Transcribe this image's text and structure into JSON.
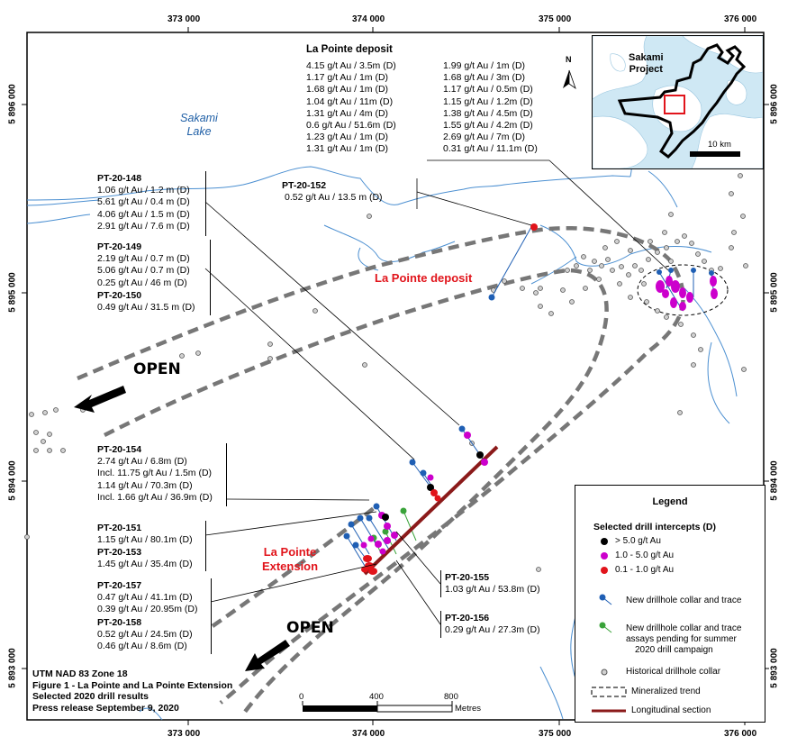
{
  "grid": {
    "x_ticks": [
      "373 000",
      "374 000",
      "375 000",
      "376 000"
    ],
    "y_ticks": [
      "5 896 000",
      "5 895 000",
      "5 894 000",
      "5 893 000"
    ]
  },
  "lake": {
    "line1": "Sakami",
    "line2": "Lake"
  },
  "deposit_box": {
    "title": "La Pointe deposit",
    "left": [
      "4.15 g/t Au / 3.5m (D)",
      "1.17 g/t Au / 1m (D)",
      "1.68 g/t Au / 1m (D)",
      "1.04 g/t Au / 11m (D)",
      "1.31 g/t Au / 4m (D)",
      "0.6 g/t Au / 51.6m (D)",
      "1.23 g/t Au / 1m (D)",
      "1.31 g/t Au / 1m (D)"
    ],
    "right": [
      "1.99 g/t Au / 1m (D)",
      "1.68 g/t Au / 3m (D)",
      "1.17 g/t Au / 0.5m (D)",
      "1.15 g/t Au / 1.2m (D)",
      "1.38 g/t Au / 4.5m (D)",
      "1.55 g/t Au / 4.2m (D)",
      "2.69 g/t Au / 7m (D)",
      "0.31 g/t Au / 11.1m (D)"
    ]
  },
  "callouts": {
    "pt148": {
      "name": "PT-20-148",
      "rows": [
        "1.06 g/t Au / 1.2 m (D)",
        "5.61 g/t Au / 0.4 m (D)",
        "4.06 g/t Au / 1.5 m (D)",
        "2.91 g/t Au / 7.6 m (D)"
      ]
    },
    "pt149": {
      "name": "PT-20-149",
      "rows": [
        "2.19 g/t Au / 0.7 m (D)",
        "5.06 g/t Au / 0.7 m (D)",
        "0.25 g/t Au / 46 m (D)"
      ]
    },
    "pt150": {
      "name": "PT-20-150",
      "rows": [
        "0.49 g/t Au / 31.5 m (D)"
      ]
    },
    "pt152": {
      "name": "PT-20-152",
      "rows": [
        "0.52 g/t Au / 13.5 m (D)"
      ]
    },
    "pt154": {
      "name": "PT-20-154",
      "rows": [
        "2.74 g/t Au / 6.8m (D)",
        "Incl. 11.75 g/t Au / 1.5m (D)",
        "1.14 g/t Au / 70.3m (D)",
        "Incl. 1.66 g/t Au / 36.9m (D)"
      ]
    },
    "pt151": {
      "name": "PT-20-151",
      "rows": [
        "1.15 g/t Au / 80.1m (D)"
      ]
    },
    "pt153": {
      "name": "PT-20-153",
      "rows": [
        "1.45 g/t Au / 35.4m (D)"
      ]
    },
    "pt157": {
      "name": "PT-20-157",
      "rows": [
        "0.47 g/t Au / 41.1m (D)",
        "0.39 g/t Au / 20.95m (D)"
      ]
    },
    "pt158": {
      "name": "PT-20-158",
      "rows": [
        "0.52 g/t Au / 24.5m (D)",
        "0.46 g/t Au / 8.6m (D)"
      ]
    },
    "pt155": {
      "name": "PT-20-155",
      "rows": [
        "1.03 g/t Au / 53.8m (D)"
      ]
    },
    "pt156": {
      "name": "PT-20-156",
      "rows": [
        "0.29 g/t Au / 27.3m (D)"
      ]
    }
  },
  "labels": {
    "open": "OPEN",
    "deposit": "La Pointe deposit",
    "extension_1": "La Pointe",
    "extension_2": "Extension",
    "north": "N"
  },
  "inset": {
    "line1": "Sakami",
    "line2": "Project",
    "scale": "10 km"
  },
  "scalebar": {
    "t0": "0",
    "t1": "400",
    "t2": "800",
    "unit": "Metres"
  },
  "footer": [
    "UTM NAD 83 Zone 18",
    "Figure 1 - La Pointe and La Pointe Extension",
    "Selected 2020 drill results",
    "Press release September 9, 2020"
  ],
  "legend": {
    "title": "Legend",
    "section": "Selected drill intercepts (D)",
    "items": [
      {
        "label": "> 5.0 g/t Au",
        "color": "#000000"
      },
      {
        "label": "1.0 - 5.0 g/t Au",
        "color": "#cc00cc"
      },
      {
        "label": "0.1 - 1.0 g/t Au",
        "color": "#e1141b"
      }
    ],
    "new_collar": "New drillhole collar and trace",
    "pending_1": "New drillhole collar and trace",
    "pending_2": "assays pending for summer",
    "pending_3": "2020 drill campaign",
    "historical": "Historical drillhole collar",
    "trend": "Mineralized trend",
    "longitudinal": "Longitudinal section",
    "colors": {
      "new": "#1f5fb4",
      "pending": "#3aa33a",
      "trend": "#777777",
      "section": "#8b1a1a"
    }
  }
}
